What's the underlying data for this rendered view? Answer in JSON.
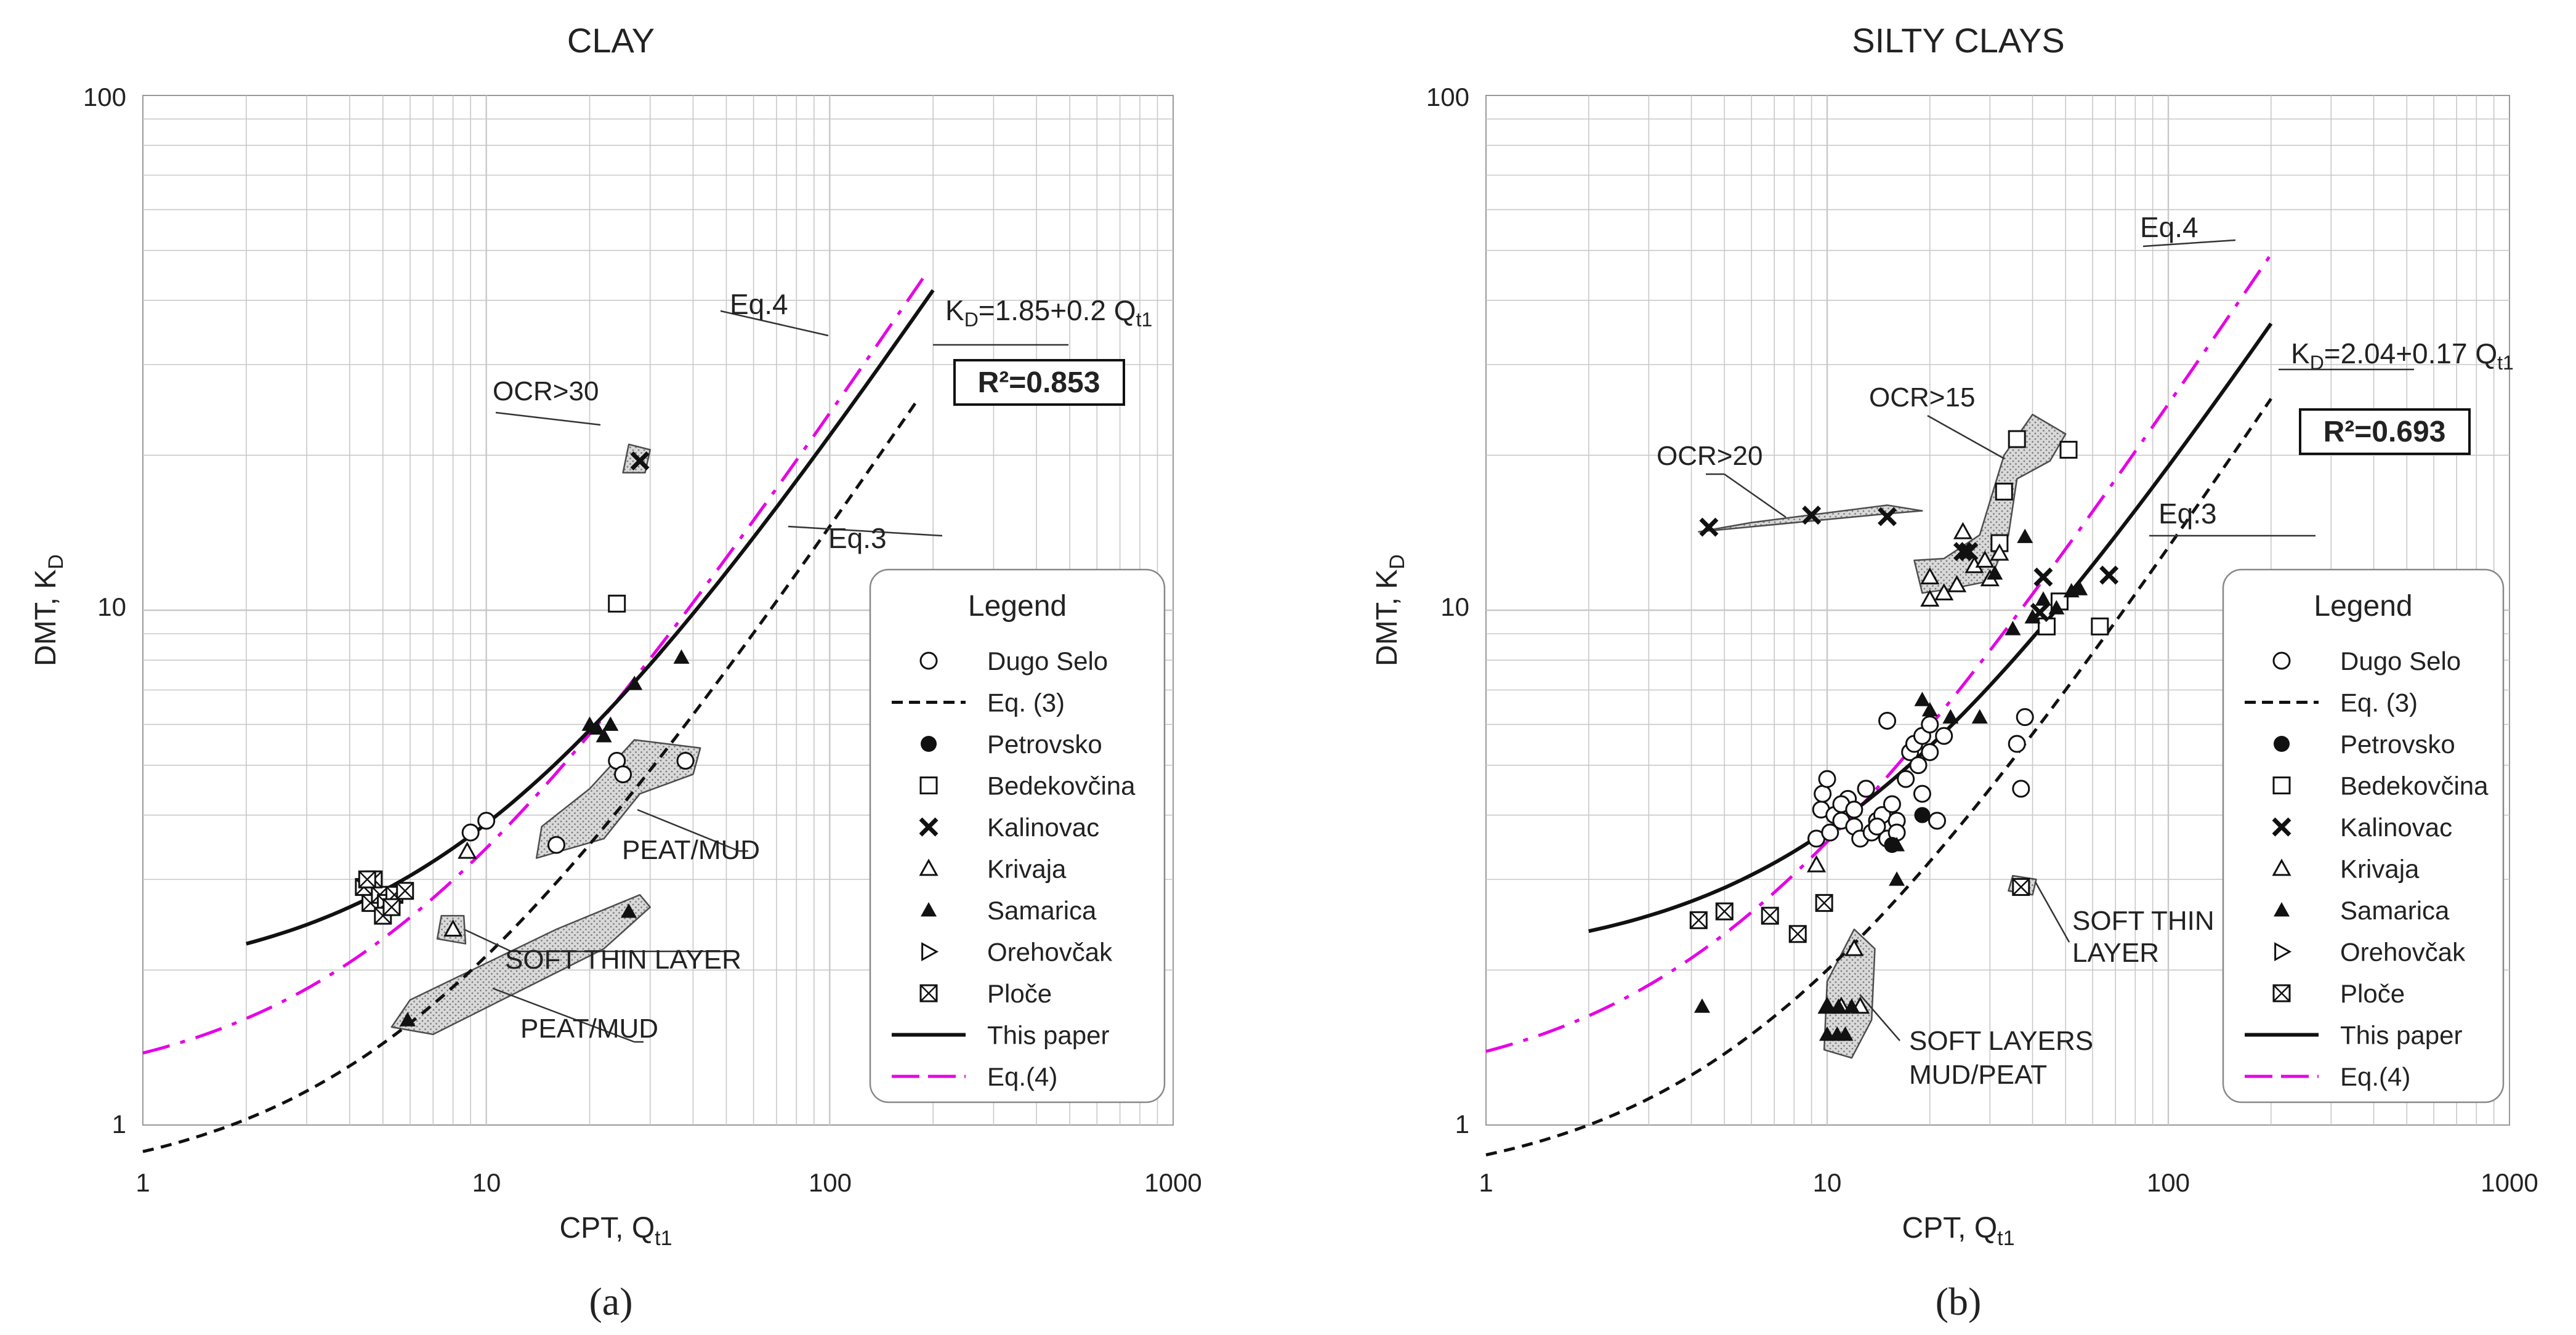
{
  "figure": {
    "panel_a_label": "(a)",
    "panel_b_label": "(b)"
  },
  "colors": {
    "eq4": "#e600e6",
    "ink": "#111111",
    "grid": "#c8c8c8",
    "shade": "#d0d0d0"
  },
  "chart_data": [
    {
      "type": "scatter",
      "title": "CLAY",
      "xlabel": "CPT, Q",
      "xlabel_sub": "t1",
      "ylabel": "DMT, K",
      "ylabel_sub": "D",
      "xscale": "log",
      "yscale": "log",
      "xlim": [
        1,
        1000
      ],
      "ylim": [
        1,
        100
      ],
      "xticks": [
        "1",
        "10",
        "100",
        "1000"
      ],
      "yticks": [
        "1",
        "10",
        "100"
      ],
      "grid": true,
      "legend": {
        "title": "Legend",
        "position": "bottom-right",
        "items": [
          {
            "label": "Dugo Selo",
            "marker": "circle"
          },
          {
            "label": "Eq. (3)",
            "marker": "dashed"
          },
          {
            "label": "Petrovsko",
            "marker": "dot"
          },
          {
            "label": "Bedekovčina",
            "marker": "square"
          },
          {
            "label": "Kalinovac",
            "marker": "cross"
          },
          {
            "label": "Krivaja",
            "marker": "triangle-open"
          },
          {
            "label": "Samarica",
            "marker": "triangle"
          },
          {
            "label": "Orehovčak",
            "marker": "tri-right"
          },
          {
            "label": "Ploče",
            "marker": "boxx"
          },
          {
            "label": "This paper",
            "marker": "solid"
          },
          {
            "label": "Eq.(4)",
            "marker": "eq4"
          }
        ]
      },
      "lines": {
        "this_paper": {
          "a": 1.85,
          "b": 0.2,
          "xrange": [
            2,
            200
          ]
        },
        "eq3": {
          "a": 0,
          "b": 0.138,
          "xrange": [
            1,
            180
          ]
        },
        "eq4": {
          "a": 0,
          "b": 0.23,
          "xrange": [
            1,
            190
          ]
        }
      },
      "annotations": {
        "eq4_label": "Eq.4",
        "eq3_label": "Eq.3",
        "kd_main": "K",
        "kd_sub": "D",
        "kd_formula": "=1.85+0.2 Q",
        "kd_sub2": "t1",
        "r2": "R²=0.853",
        "ocr": "OCR>30",
        "peat_mud_1": "PEAT/MUD",
        "soft_thin": "SOFT THIN LAYER",
        "peat_mud_2": "PEAT/MUD"
      },
      "zones": [
        {
          "name": "ocr",
          "points": [
            [
              25,
              18.5
            ],
            [
              29,
              18.5
            ],
            [
              30,
              20.5
            ],
            [
              26,
              21
            ]
          ]
        },
        {
          "name": "peat1",
          "points": [
            [
              14,
              3.3
            ],
            [
              22,
              3.6
            ],
            [
              28,
              4.4
            ],
            [
              40,
              4.8
            ],
            [
              42,
              5.4
            ],
            [
              27,
              5.6
            ],
            [
              20,
              4.5
            ],
            [
              14.5,
              3.8
            ]
          ]
        },
        {
          "name": "soft",
          "points": [
            [
              7.2,
              2.3
            ],
            [
              8.7,
              2.25
            ],
            [
              8.6,
              2.55
            ],
            [
              7.4,
              2.55
            ]
          ]
        },
        {
          "name": "peat2",
          "points": [
            [
              5.3,
              1.55
            ],
            [
              7,
              1.5
            ],
            [
              22,
              2.2
            ],
            [
              30,
              2.65
            ],
            [
              28,
              2.8
            ],
            [
              16,
              2.4
            ],
            [
              6,
              1.75
            ]
          ]
        }
      ],
      "series": [
        {
          "name": "Dugo Selo",
          "marker": "circle",
          "points": [
            [
              9,
              3.7
            ],
            [
              10,
              3.9
            ],
            [
              16,
              3.5
            ],
            [
              24,
              5.1
            ],
            [
              25,
              4.8
            ],
            [
              38,
              5.1
            ]
          ]
        },
        {
          "name": "Bedekovčina",
          "marker": "square",
          "points": [
            [
              24,
              10.3
            ]
          ]
        },
        {
          "name": "Kalinovac",
          "marker": "cross",
          "points": [
            [
              28,
              19.5
            ]
          ]
        },
        {
          "name": "Krivaja",
          "marker": "triangle-open",
          "points": [
            [
              8.8,
              3.4
            ],
            [
              8,
              2.4
            ]
          ]
        },
        {
          "name": "Samarica",
          "marker": "triangle",
          "points": [
            [
              20,
              6
            ],
            [
              21,
              5.9
            ],
            [
              22,
              5.7
            ],
            [
              23,
              6
            ],
            [
              27,
              7.2
            ],
            [
              37,
              8.1
            ],
            [
              26,
              2.6
            ],
            [
              5.9,
              1.6
            ]
          ]
        },
        {
          "name": "Ploče",
          "marker": "boxx",
          "points": [
            [
              4.4,
              2.9
            ],
            [
              4.6,
              2.7
            ],
            [
              4.9,
              2.8
            ],
            [
              5.1,
              2.7
            ],
            [
              5.4,
              2.8
            ],
            [
              5.8,
              2.85
            ],
            [
              4.7,
              3
            ],
            [
              5,
              2.55
            ],
            [
              5.3,
              2.65
            ],
            [
              4.5,
              3
            ]
          ]
        }
      ]
    },
    {
      "type": "scatter",
      "title": "SILTY CLAYS",
      "xlabel": "CPT, Q",
      "xlabel_sub": "t1",
      "ylabel": "DMT, K",
      "ylabel_sub": "D",
      "xscale": "log",
      "yscale": "log",
      "xlim": [
        1,
        1000
      ],
      "ylim": [
        1,
        100
      ],
      "xticks": [
        "1",
        "10",
        "100",
        "1000"
      ],
      "yticks": [
        "1",
        "10",
        "100"
      ],
      "grid": true,
      "legend": {
        "title": "Legend",
        "position": "bottom-right",
        "items": [
          {
            "label": "Dugo Selo",
            "marker": "circle"
          },
          {
            "label": "Eq. (3)",
            "marker": "dashed"
          },
          {
            "label": "Petrovsko",
            "marker": "dot"
          },
          {
            "label": "Bedekovčina",
            "marker": "square"
          },
          {
            "label": "Kalinovac",
            "marker": "cross"
          },
          {
            "label": "Krivaja",
            "marker": "triangle-open"
          },
          {
            "label": "Samarica",
            "marker": "triangle"
          },
          {
            "label": "Orehovčak",
            "marker": "tri-right"
          },
          {
            "label": "Ploče",
            "marker": "boxx"
          },
          {
            "label": "This paper",
            "marker": "solid"
          },
          {
            "label": "Eq.(4)",
            "marker": "eq4"
          }
        ]
      },
      "lines": {
        "this_paper": {
          "a": 2.04,
          "b": 0.17,
          "xrange": [
            2,
            200
          ]
        },
        "eq3": {
          "a": 0,
          "b": 0.125,
          "xrange": [
            1,
            200
          ]
        },
        "eq4": {
          "a": 0,
          "b": 0.24,
          "xrange": [
            1,
            200
          ]
        }
      },
      "annotations": {
        "eq4_label": "Eq.4",
        "eq3_label": "Eq.3",
        "kd_main": "K",
        "kd_sub": "D",
        "kd_formula": "=2.04+0.17 Q",
        "kd_sub2": "t1",
        "r2": "R²=0.693",
        "ocr20": "OCR>20",
        "ocr15": "OCR>15",
        "soft_thin_1": "SOFT THIN",
        "soft_thin_2": "LAYER",
        "soft_layers_1": "SOFT LAYERS",
        "soft_layers_2": "MUD/PEAT"
      },
      "zones": [
        {
          "name": "ocr20",
          "points": [
            [
              4.2,
              14.2
            ],
            [
              15,
              15.4
            ],
            [
              19,
              15.6
            ],
            [
              15,
              16
            ],
            [
              6,
              14.8
            ]
          ]
        },
        {
          "name": "ocr15",
          "points": [
            [
              19,
              10.8
            ],
            [
              23,
              11
            ],
            [
              30,
              11.4
            ],
            [
              34,
              14
            ],
            [
              36,
              18
            ],
            [
              45,
              19.5
            ],
            [
              50,
              22
            ],
            [
              40,
              24
            ],
            [
              33,
              20
            ],
            [
              28,
              14
            ],
            [
              22,
              12.6
            ],
            [
              18,
              12.5
            ]
          ]
        },
        {
          "name": "softthin",
          "points": [
            [
              34,
              2.85
            ],
            [
              40,
              2.8
            ],
            [
              41,
              3
            ],
            [
              35,
              3.05
            ]
          ]
        },
        {
          "name": "softlayers",
          "points": [
            [
              9.8,
              1.4
            ],
            [
              11.8,
              1.35
            ],
            [
              13.5,
              1.6
            ],
            [
              13.8,
              2.2
            ],
            [
              12,
              2.4
            ],
            [
              10,
              1.9
            ]
          ]
        }
      ],
      "series": [
        {
          "name": "Dugo Selo",
          "marker": "circle",
          "points": [
            [
              9.3,
              3.6
            ],
            [
              9.6,
              4.1
            ],
            [
              9.7,
              4.4
            ],
            [
              10.2,
              3.7
            ],
            [
              10.5,
              4
            ],
            [
              11,
              3.9
            ],
            [
              11.5,
              4.3
            ],
            [
              12,
              3.8
            ],
            [
              12.5,
              3.6
            ],
            [
              13,
              4.5
            ],
            [
              13.5,
              3.7
            ],
            [
              14,
              3.9
            ],
            [
              14.5,
              4
            ],
            [
              15,
              3.6
            ],
            [
              15.5,
              4.2
            ],
            [
              16,
              3.9
            ],
            [
              17,
              4.7
            ],
            [
              17.5,
              5.3
            ],
            [
              18,
              5.5
            ],
            [
              18.5,
              5
            ],
            [
              19,
              5.7
            ],
            [
              20,
              6
            ],
            [
              21,
              3.9
            ],
            [
              22,
              5.7
            ],
            [
              15,
              6.1
            ],
            [
              10,
              4.7
            ],
            [
              11,
              4.2
            ],
            [
              12,
              4.1
            ],
            [
              13,
              4.5
            ],
            [
              14,
              3.8
            ],
            [
              36,
              5.5
            ],
            [
              37,
              4.5
            ],
            [
              38,
              6.2
            ],
            [
              16,
              3.7
            ],
            [
              19,
              4.4
            ],
            [
              20,
              5.3
            ]
          ]
        },
        {
          "name": "Petrovsko",
          "marker": "dot",
          "points": [
            [
              19,
              4
            ],
            [
              15.5,
              3.5
            ]
          ]
        },
        {
          "name": "Bedekovčina",
          "marker": "square",
          "points": [
            [
              36,
              21.5
            ],
            [
              51,
              20.5
            ],
            [
              33,
              17
            ],
            [
              32,
              13.5
            ],
            [
              48,
              10.4
            ],
            [
              63,
              9.3
            ],
            [
              44,
              9.3
            ]
          ]
        },
        {
          "name": "Kalinovac",
          "marker": "cross",
          "points": [
            [
              4.5,
              14.5
            ],
            [
              9,
              15.3
            ],
            [
              15,
              15.2
            ],
            [
              25,
              13
            ],
            [
              26,
              13
            ],
            [
              43,
              11.6
            ],
            [
              67,
              11.7
            ],
            [
              42,
              9.9
            ]
          ]
        },
        {
          "name": "Krivaja",
          "marker": "triangle-open",
          "points": [
            [
              20,
              11.6
            ],
            [
              22,
              10.8
            ],
            [
              24,
              11.2
            ],
            [
              25,
              14.2
            ],
            [
              27,
              12.2
            ],
            [
              29,
              12.5
            ],
            [
              30,
              11.5
            ],
            [
              32,
              12.9
            ],
            [
              20,
              10.5
            ],
            [
              9.3,
              3.2
            ],
            [
              12,
              2.2
            ],
            [
              10,
              1.7
            ],
            [
              11,
              1.7
            ],
            [
              12.5,
              1.7
            ]
          ]
        },
        {
          "name": "Samarica",
          "marker": "triangle",
          "points": [
            [
              19,
              6.7
            ],
            [
              20,
              6.4
            ],
            [
              23,
              6.2
            ],
            [
              28,
              6.2
            ],
            [
              31,
              11.8
            ],
            [
              38,
              13.9
            ],
            [
              40,
              9.7
            ],
            [
              43,
              10.5
            ],
            [
              47,
              10.1
            ],
            [
              52,
              10.9
            ],
            [
              55,
              11
            ],
            [
              16,
              3
            ],
            [
              16,
              3.5
            ],
            [
              4.3,
              1.7
            ],
            [
              10,
              1.7
            ],
            [
              10.8,
              1.7
            ],
            [
              11.8,
              1.7
            ],
            [
              10,
              1.5
            ],
            [
              10.7,
              1.5
            ],
            [
              11.3,
              1.5
            ],
            [
              35,
              9.2
            ]
          ]
        },
        {
          "name": "Ploče",
          "marker": "boxx",
          "points": [
            [
              4.2,
              2.5
            ],
            [
              5,
              2.6
            ],
            [
              6.8,
              2.55
            ],
            [
              8.2,
              2.35
            ],
            [
              9.8,
              2.7
            ],
            [
              37,
              2.9
            ]
          ]
        }
      ]
    }
  ]
}
